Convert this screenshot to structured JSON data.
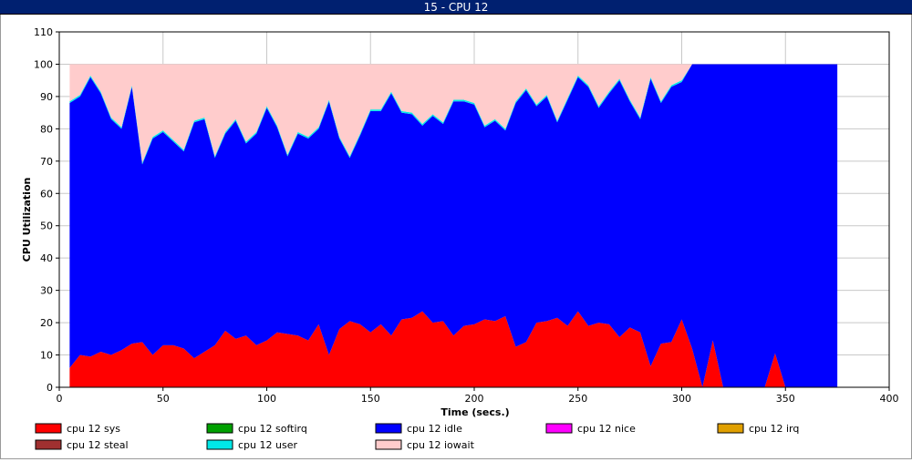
{
  "window": {
    "title": "15 - CPU 12"
  },
  "chart_data": {
    "type": "area",
    "stacked": true,
    "title": "",
    "xlabel": "Time (secs.)",
    "ylabel": "CPU Utilization",
    "xlim": [
      0,
      400
    ],
    "ylim": [
      0,
      110
    ],
    "xticks": [
      0,
      50,
      100,
      150,
      200,
      250,
      300,
      350,
      400
    ],
    "yticks": [
      0,
      10,
      20,
      30,
      40,
      50,
      60,
      70,
      80,
      90,
      100,
      110
    ],
    "grid": true,
    "legend_position": "bottom",
    "x": [
      5,
      10,
      15,
      20,
      25,
      30,
      35,
      40,
      45,
      50,
      55,
      60,
      65,
      70,
      75,
      80,
      85,
      90,
      95,
      100,
      105,
      110,
      115,
      120,
      125,
      130,
      135,
      140,
      145,
      150,
      155,
      160,
      165,
      170,
      175,
      180,
      185,
      190,
      195,
      200,
      205,
      210,
      215,
      220,
      225,
      230,
      235,
      240,
      245,
      250,
      255,
      260,
      265,
      270,
      275,
      280,
      285,
      290,
      295,
      300,
      305,
      310,
      315,
      320,
      325,
      330,
      335,
      340,
      345,
      350,
      355,
      360,
      365,
      370,
      375
    ],
    "series": [
      {
        "name": "cpu 12 sys",
        "color": "#ff0000",
        "values": [
          6,
          10,
          9.5,
          11,
          10,
          11.5,
          13.5,
          14,
          10,
          13,
          13,
          12,
          9,
          11,
          13,
          17.5,
          15,
          16,
          13,
          14.5,
          17,
          16.5,
          16,
          14.5,
          19.5,
          10,
          18,
          20.5,
          19.5,
          17,
          19.5,
          16,
          21,
          21.5,
          23.5,
          20,
          20.5,
          16,
          19,
          19.5,
          21,
          20.5,
          22,
          12.5,
          14,
          20,
          20.5,
          21.5,
          19,
          23.5,
          19,
          20,
          19.5,
          15.5,
          18.5,
          17,
          6.5,
          13.5,
          14,
          21,
          12,
          0,
          14.5,
          0,
          0,
          0,
          0,
          0,
          10.5,
          0,
          0,
          0,
          0,
          0,
          0
        ]
      },
      {
        "name": "cpu 12 softirq",
        "color": "#00a000",
        "values": [
          0,
          0,
          0,
          0,
          0,
          0,
          0,
          0,
          0,
          0,
          0,
          0,
          0,
          0,
          0,
          0,
          0,
          0,
          0,
          0,
          0,
          0,
          0,
          0,
          0,
          0,
          0,
          0,
          0,
          0,
          0,
          0,
          0,
          0,
          0,
          0,
          0,
          0,
          0,
          0,
          0,
          0,
          0,
          0,
          0,
          0,
          0,
          0,
          0,
          0,
          0,
          0,
          0,
          0,
          0,
          0,
          0,
          0,
          0,
          0,
          0,
          0,
          0,
          0,
          0,
          0,
          0,
          0,
          0,
          0,
          0,
          0,
          0,
          0,
          0
        ]
      },
      {
        "name": "cpu 12 idle",
        "color": "#0000ff",
        "values": [
          82,
          80,
          86.5,
          80,
          73,
          68.5,
          79.5,
          55,
          67,
          66,
          63,
          61,
          73,
          72,
          58,
          61,
          67.5,
          59.5,
          65.5,
          72,
          63.5,
          55,
          62.5,
          62.5,
          60.5,
          78.5,
          59,
          50.5,
          58.5,
          68.5,
          66,
          75,
          64,
          63,
          57.5,
          64,
          61,
          72.5,
          69.5,
          68,
          59.5,
          62,
          57.5,
          75.5,
          78,
          67,
          69.5,
          60.5,
          70,
          72.5,
          74,
          66.5,
          71.5,
          79.5,
          70,
          66,
          89,
          74.5,
          79,
          73.5,
          88,
          100,
          85.5,
          100,
          100,
          100,
          100,
          100,
          89.5,
          100,
          100,
          100,
          100,
          100,
          100
        ]
      },
      {
        "name": "cpu 12 nice",
        "color": "#ff00ff",
        "values": [
          0,
          0,
          0,
          0,
          0,
          0,
          0,
          0,
          0,
          0,
          0,
          0,
          0,
          0,
          0,
          0,
          0,
          0,
          0,
          0,
          0,
          0,
          0,
          0,
          0,
          0,
          0,
          0,
          0,
          0,
          0,
          0,
          0,
          0,
          0,
          0,
          0,
          0,
          0,
          0,
          0,
          0,
          0,
          0,
          0,
          0,
          0,
          0,
          0,
          0,
          0,
          0,
          0,
          0,
          0,
          0,
          0,
          0,
          0,
          0,
          0,
          0,
          0,
          0,
          0,
          0,
          0,
          0,
          0,
          0,
          0,
          0,
          0,
          0,
          0
        ]
      },
      {
        "name": "cpu 12 irq",
        "color": "#e0a000",
        "values": [
          0,
          0,
          0,
          0,
          0,
          0,
          0,
          0,
          0,
          0,
          0,
          0,
          0,
          0,
          0,
          0,
          0,
          0,
          0,
          0,
          0,
          0,
          0,
          0,
          0,
          0,
          0,
          0,
          0,
          0,
          0,
          0,
          0,
          0,
          0,
          0,
          0,
          0,
          0,
          0,
          0,
          0,
          0,
          0,
          0,
          0,
          0,
          0,
          0,
          0,
          0,
          0,
          0,
          0,
          0,
          0,
          0,
          0,
          0,
          0,
          0,
          0,
          0,
          0,
          0,
          0,
          0,
          0,
          0,
          0,
          0,
          0,
          0,
          0,
          0
        ]
      },
      {
        "name": "cpu 12 steal",
        "color": "#a03030",
        "values": [
          0,
          0,
          0,
          0,
          0,
          0,
          0,
          0,
          0,
          0,
          0,
          0,
          0,
          0,
          0,
          0,
          0,
          0,
          0,
          0,
          0,
          0,
          0,
          0,
          0,
          0,
          0,
          0,
          0,
          0,
          0,
          0,
          0,
          0,
          0,
          0,
          0,
          0,
          0,
          0,
          0,
          0,
          0,
          0,
          0,
          0,
          0,
          0,
          0,
          0,
          0,
          0,
          0,
          0,
          0,
          0,
          0,
          0,
          0,
          0,
          0,
          0,
          0,
          0,
          0,
          0,
          0,
          0,
          0,
          0,
          0,
          0,
          0,
          0,
          0
        ]
      },
      {
        "name": "cpu 12 user",
        "color": "#00e8e8",
        "values": [
          0.5,
          0.5,
          0.5,
          0.5,
          0.5,
          0.5,
          0.5,
          0.5,
          0.5,
          0.5,
          0.5,
          0.5,
          0.5,
          0.5,
          0.5,
          0.5,
          0.5,
          0.5,
          0.5,
          0.5,
          0.5,
          0.5,
          0.5,
          0.5,
          0.5,
          0.5,
          0.5,
          0.5,
          0.5,
          0.5,
          0.5,
          0.5,
          0.5,
          0.5,
          0.5,
          0.5,
          0.5,
          0.5,
          0.5,
          0.5,
          0.5,
          0.5,
          0.5,
          0.5,
          0.5,
          0.5,
          0.5,
          0.5,
          0.5,
          0.5,
          0.5,
          0.5,
          0.5,
          0.5,
          0.5,
          0.5,
          0.5,
          0.5,
          0.5,
          0.5,
          0,
          0,
          0,
          0,
          0,
          0,
          0,
          0,
          0,
          0,
          0,
          0,
          0,
          0,
          0
        ]
      },
      {
        "name": "cpu 12 iowait",
        "color": "#ffcccc",
        "values": [
          11.5,
          9.5,
          3.5,
          8.5,
          16.5,
          19.5,
          6.5,
          30.5,
          22.5,
          20.5,
          23.5,
          26.5,
          17.5,
          16.5,
          28.5,
          21,
          17,
          24,
          21,
          13,
          19,
          28,
          21,
          22.5,
          19.5,
          11,
          22.5,
          28.5,
          21.5,
          14,
          14,
          8.5,
          14.5,
          15,
          18.5,
          15.5,
          18,
          11,
          11,
          12,
          19,
          17,
          20,
          11.5,
          7.5,
          12.5,
          9.5,
          17.5,
          10.5,
          3.5,
          6.5,
          13,
          8.5,
          4.5,
          11,
          16.5,
          4,
          11.5,
          6.5,
          5,
          0,
          0,
          0,
          0,
          0,
          0,
          0,
          0,
          0,
          0,
          0,
          0,
          0,
          0,
          0
        ]
      }
    ]
  }
}
